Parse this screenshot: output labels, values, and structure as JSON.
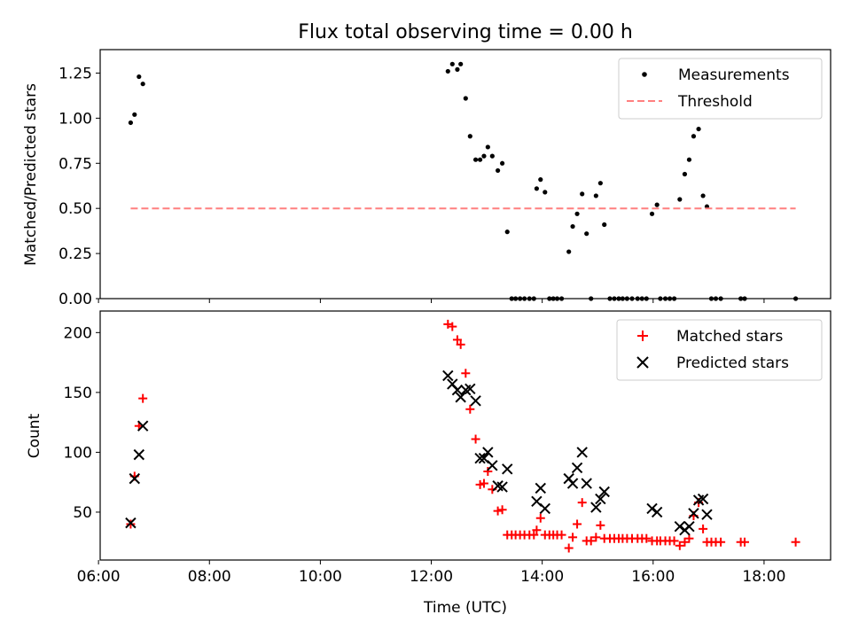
{
  "chart_data": [
    {
      "type": "scatter",
      "title": "Flux total observing time = 0.00 h",
      "xlabel": "",
      "ylabel": "Matched/Predicted stars",
      "xlim": [
        6.03,
        19.2
      ],
      "ylim": [
        0,
        1.38
      ],
      "x_ticks": [
        6,
        8,
        10,
        12,
        14,
        16,
        18
      ],
      "y_ticks": [
        0.0,
        0.25,
        0.5,
        0.75,
        1.0,
        1.25
      ],
      "y_tick_labels": [
        "0.00",
        "0.25",
        "0.50",
        "0.75",
        "1.00",
        "1.25"
      ],
      "legend_position": "top-right",
      "series": [
        {
          "name": "Measurements",
          "marker": "dot",
          "color": "#000000",
          "points": [
            [
              6.58,
              0.975
            ],
            [
              6.65,
              1.02
            ],
            [
              6.73,
              1.23
            ],
            [
              6.8,
              1.19
            ],
            [
              12.3,
              1.26
            ],
            [
              12.38,
              1.3
            ],
            [
              12.47,
              1.27
            ],
            [
              12.53,
              1.3
            ],
            [
              12.62,
              1.11
            ],
            [
              12.7,
              0.9
            ],
            [
              12.8,
              0.77
            ],
            [
              12.88,
              0.77
            ],
            [
              12.95,
              0.79
            ],
            [
              13.02,
              0.84
            ],
            [
              13.1,
              0.79
            ],
            [
              13.2,
              0.71
            ],
            [
              13.28,
              0.75
            ],
            [
              13.37,
              0.37
            ],
            [
              13.45,
              0.0
            ],
            [
              13.52,
              0.0
            ],
            [
              13.6,
              0.0
            ],
            [
              13.68,
              0.0
            ],
            [
              13.77,
              0.0
            ],
            [
              13.85,
              0.0
            ],
            [
              13.9,
              0.61
            ],
            [
              13.97,
              0.66
            ],
            [
              14.05,
              0.59
            ],
            [
              14.13,
              0.0
            ],
            [
              14.2,
              0.0
            ],
            [
              14.27,
              0.0
            ],
            [
              14.35,
              0.0
            ],
            [
              14.48,
              0.26
            ],
            [
              14.55,
              0.4
            ],
            [
              14.63,
              0.47
            ],
            [
              14.72,
              0.58
            ],
            [
              14.8,
              0.36
            ],
            [
              14.88,
              0.0
            ],
            [
              14.97,
              0.57
            ],
            [
              15.05,
              0.64
            ],
            [
              15.12,
              0.41
            ],
            [
              15.22,
              0.0
            ],
            [
              15.3,
              0.0
            ],
            [
              15.38,
              0.0
            ],
            [
              15.45,
              0.0
            ],
            [
              15.53,
              0.0
            ],
            [
              15.62,
              0.0
            ],
            [
              15.72,
              0.0
            ],
            [
              15.8,
              0.0
            ],
            [
              15.88,
              0.0
            ],
            [
              15.98,
              0.47
            ],
            [
              16.07,
              0.52
            ],
            [
              16.13,
              0.0
            ],
            [
              16.22,
              0.0
            ],
            [
              16.3,
              0.0
            ],
            [
              16.38,
              0.0
            ],
            [
              16.48,
              0.55
            ],
            [
              16.57,
              0.69
            ],
            [
              16.65,
              0.77
            ],
            [
              16.73,
              0.9
            ],
            [
              16.82,
              0.94
            ],
            [
              16.9,
              0.57
            ],
            [
              16.97,
              0.51
            ],
            [
              17.05,
              0.0
            ],
            [
              17.13,
              0.0
            ],
            [
              17.22,
              0.0
            ],
            [
              17.58,
              0.0
            ],
            [
              17.65,
              0.0
            ],
            [
              18.57,
              0.0
            ]
          ]
        },
        {
          "name": "Threshold",
          "line": "dashed",
          "color": "#ff7f7f",
          "x": [
            6.58,
            18.57
          ],
          "y": [
            0.5,
            0.5
          ]
        }
      ]
    },
    {
      "type": "scatter",
      "title": "",
      "xlabel": "Time (UTC)",
      "ylabel": "Count",
      "xlim": [
        6.03,
        19.2
      ],
      "ylim": [
        10,
        218
      ],
      "x_ticks": [
        6,
        8,
        10,
        12,
        14,
        16,
        18
      ],
      "x_tick_labels": [
        "06:00",
        "08:00",
        "10:00",
        "12:00",
        "14:00",
        "16:00",
        "18:00"
      ],
      "y_ticks": [
        50,
        100,
        150,
        200
      ],
      "y_tick_labels": [
        "50",
        "100",
        "150",
        "200"
      ],
      "legend_position": "top-right",
      "series": [
        {
          "name": "Matched stars",
          "marker": "plus",
          "color": "#ff0000",
          "points": [
            [
              6.58,
              40
            ],
            [
              6.65,
              80
            ],
            [
              6.73,
              122
            ],
            [
              6.8,
              145
            ],
            [
              12.3,
              207
            ],
            [
              12.38,
              205
            ],
            [
              12.47,
              194
            ],
            [
              12.53,
              190
            ],
            [
              12.62,
              166
            ],
            [
              12.7,
              136
            ],
            [
              12.8,
              111
            ],
            [
              12.88,
              73
            ],
            [
              12.95,
              74
            ],
            [
              13.02,
              84
            ],
            [
              13.1,
              69
            ],
            [
              13.2,
              51
            ],
            [
              13.28,
              52
            ],
            [
              13.37,
              31
            ],
            [
              13.45,
              31
            ],
            [
              13.52,
              31
            ],
            [
              13.6,
              31
            ],
            [
              13.68,
              31
            ],
            [
              13.77,
              31
            ],
            [
              13.85,
              31
            ],
            [
              13.9,
              35
            ],
            [
              13.97,
              45
            ],
            [
              14.05,
              31
            ],
            [
              14.13,
              31
            ],
            [
              14.2,
              31
            ],
            [
              14.27,
              31
            ],
            [
              14.35,
              31
            ],
            [
              14.48,
              20
            ],
            [
              14.55,
              29
            ],
            [
              14.63,
              40
            ],
            [
              14.72,
              58
            ],
            [
              14.8,
              26
            ],
            [
              14.88,
              26
            ],
            [
              14.97,
              29
            ],
            [
              15.05,
              39
            ],
            [
              15.12,
              28
            ],
            [
              15.22,
              28
            ],
            [
              15.3,
              28
            ],
            [
              15.38,
              28
            ],
            [
              15.45,
              28
            ],
            [
              15.53,
              28
            ],
            [
              15.62,
              28
            ],
            [
              15.72,
              28
            ],
            [
              15.8,
              28
            ],
            [
              15.88,
              28
            ],
            [
              15.98,
              26
            ],
            [
              16.07,
              26
            ],
            [
              16.13,
              26
            ],
            [
              16.22,
              26
            ],
            [
              16.3,
              26
            ],
            [
              16.38,
              26
            ],
            [
              16.48,
              22
            ],
            [
              16.57,
              25
            ],
            [
              16.65,
              28
            ],
            [
              16.73,
              47
            ],
            [
              16.82,
              58
            ],
            [
              16.9,
              36
            ],
            [
              16.97,
              25
            ],
            [
              17.05,
              25
            ],
            [
              17.13,
              25
            ],
            [
              17.22,
              25
            ],
            [
              17.58,
              25
            ],
            [
              17.65,
              25
            ],
            [
              18.57,
              25
            ]
          ]
        },
        {
          "name": "Predicted stars",
          "marker": "x",
          "color": "#000000",
          "points": [
            [
              6.58,
              41
            ],
            [
              6.65,
              78
            ],
            [
              6.73,
              98
            ],
            [
              6.8,
              122
            ],
            [
              12.3,
              164
            ],
            [
              12.38,
              157
            ],
            [
              12.47,
              152
            ],
            [
              12.53,
              146
            ],
            [
              12.62,
              152
            ],
            [
              12.7,
              153
            ],
            [
              12.8,
              143
            ],
            [
              12.88,
              95
            ],
            [
              12.95,
              95
            ],
            [
              13.02,
              100
            ],
            [
              13.1,
              89
            ],
            [
              13.2,
              72
            ],
            [
              13.28,
              71
            ],
            [
              13.37,
              86
            ],
            [
              13.9,
              59
            ],
            [
              13.97,
              70
            ],
            [
              14.05,
              53
            ],
            [
              14.48,
              78
            ],
            [
              14.55,
              74
            ],
            [
              14.63,
              87
            ],
            [
              14.72,
              100
            ],
            [
              14.8,
              74
            ],
            [
              14.97,
              54
            ],
            [
              15.05,
              61
            ],
            [
              15.12,
              67
            ],
            [
              15.98,
              53
            ],
            [
              16.07,
              50
            ],
            [
              16.48,
              38
            ],
            [
              16.57,
              35
            ],
            [
              16.65,
              38
            ],
            [
              16.73,
              49
            ],
            [
              16.82,
              60
            ],
            [
              16.9,
              61
            ],
            [
              16.97,
              48
            ]
          ]
        }
      ]
    }
  ]
}
